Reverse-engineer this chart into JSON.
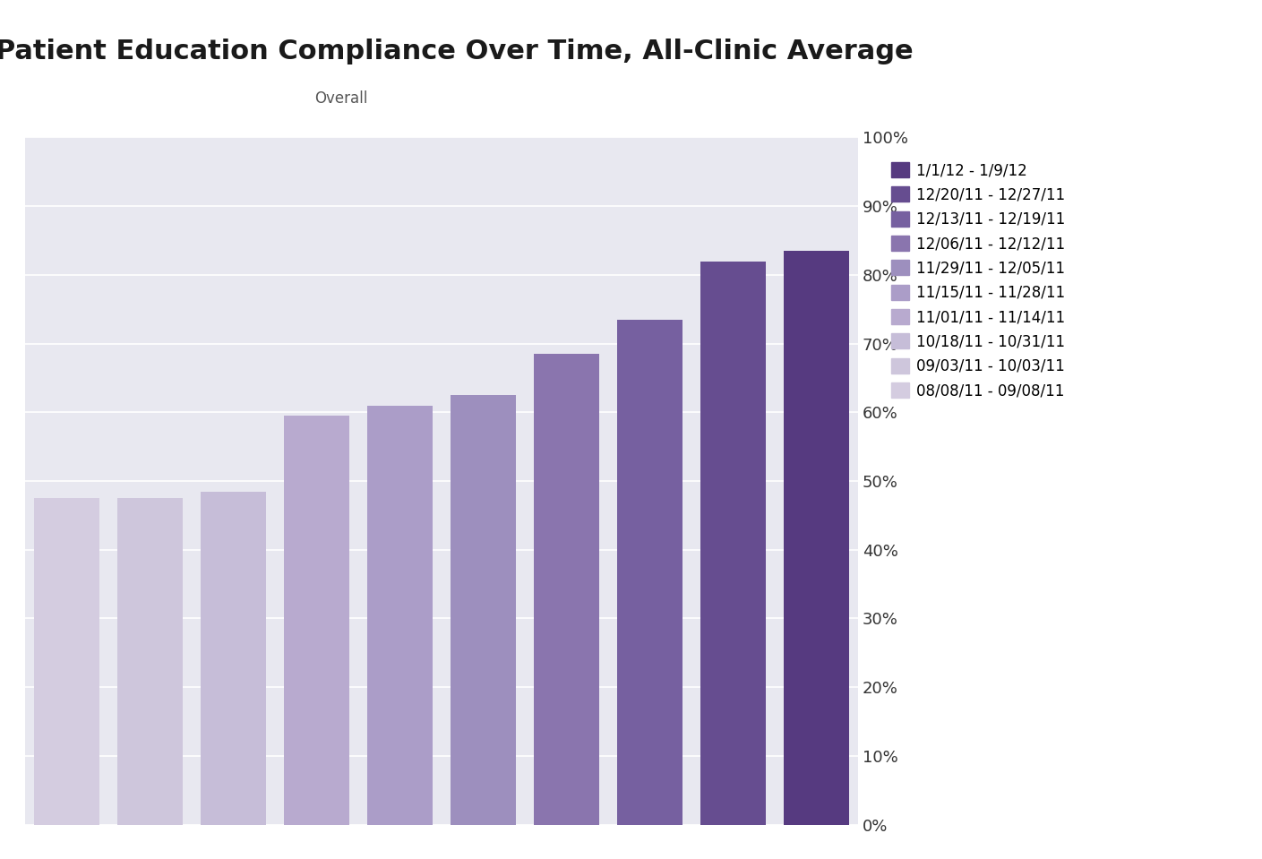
{
  "title": "Patient Education Compliance Over Time, All-Clinic Average",
  "subtitle": "Overall",
  "categories": [
    "08/08/11 - 09/08/11",
    "09/03/11 - 10/03/11",
    "10/18/11 - 10/31/11",
    "11/01/11 - 11/14/11",
    "11/15/11 - 11/28/11",
    "11/29/11 - 12/05/11",
    "12/06/11 - 12/12/11",
    "12/13/11 - 12/19/11",
    "12/20/11 - 12/27/11",
    "1/1/12 - 1/9/12"
  ],
  "values": [
    0.475,
    0.475,
    0.485,
    0.595,
    0.61,
    0.625,
    0.685,
    0.735,
    0.82,
    0.835
  ],
  "bar_colors": [
    "#d4cce0",
    "#cec6dc",
    "#c6bdd8",
    "#b8aacf",
    "#ab9dc8",
    "#9d8fbe",
    "#8a75ae",
    "#7660a0",
    "#664d90",
    "#563a80"
  ],
  "legend_labels": [
    "1/1/12 - 1/9/12",
    "12/20/11 - 12/27/11",
    "12/13/11 - 12/19/11",
    "12/06/11 - 12/12/11",
    "11/29/11 - 12/05/11",
    "11/15/11 - 11/28/11",
    "11/01/11 - 11/14/11",
    "10/18/11 - 10/31/11",
    "09/03/11 - 10/03/11",
    "08/08/11 - 09/08/11"
  ],
  "legend_colors": [
    "#563a80",
    "#664d90",
    "#7660a0",
    "#8a75ae",
    "#9d8fbe",
    "#ab9dc8",
    "#b8aacf",
    "#c6bdd8",
    "#cec6dc",
    "#d4cce0"
  ],
  "ylim": [
    0,
    1.0
  ],
  "ytick_labels": [
    "0%",
    "10%",
    "20%",
    "30%",
    "40%",
    "50%",
    "60%",
    "70%",
    "80%",
    "90%",
    "100%"
  ],
  "ytick_values": [
    0.0,
    0.1,
    0.2,
    0.3,
    0.4,
    0.5,
    0.6,
    0.7,
    0.8,
    0.9,
    1.0
  ],
  "background_color": "#e8e8f0",
  "title_fontsize": 22,
  "subtitle_fontsize": 12,
  "legend_fontsize": 12,
  "axis_fontsize": 13
}
